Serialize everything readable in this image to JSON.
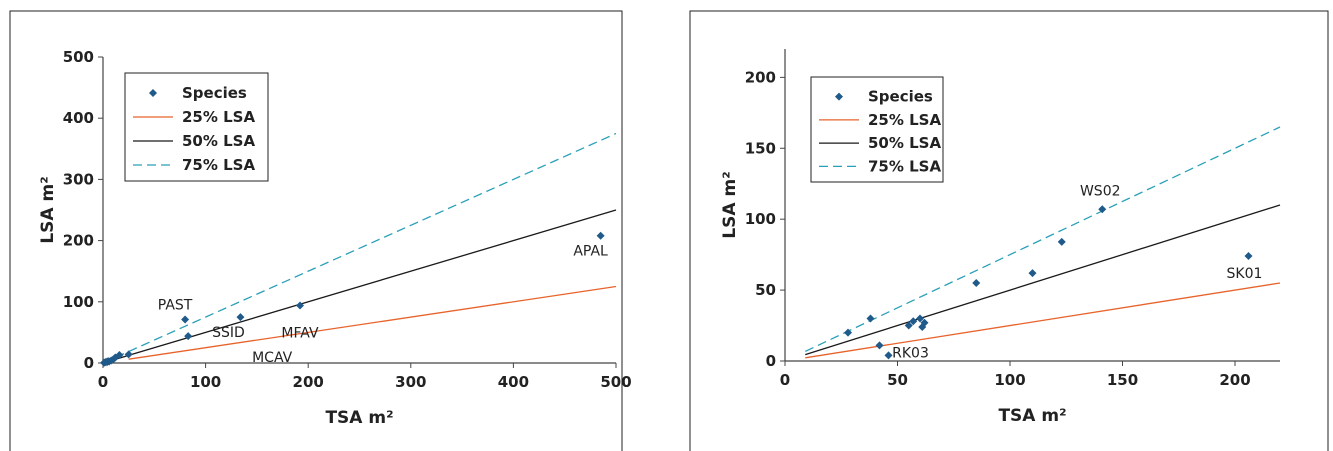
{
  "colors": {
    "marker": "#1f5a8a",
    "line_25": "#e8632b",
    "line_50": "#1a1a1a",
    "line_75": "#2aa0b8"
  },
  "chart_data": [
    {
      "type": "scatter",
      "xlabel": "TSA m²",
      "ylabel": "LSA m²",
      "xlim": [
        0,
        500
      ],
      "ylim": [
        0,
        500
      ],
      "xticks": [
        0,
        100,
        200,
        300,
        400,
        500
      ],
      "yticks": [
        0,
        100,
        200,
        300,
        400,
        500
      ],
      "legend": {
        "placement": "top-left",
        "entries": [
          "Species",
          "25% LSA",
          "50% LSA",
          "75% LSA"
        ]
      },
      "series": [
        {
          "name": "Species",
          "kind": "points",
          "points": [
            {
              "x": 1,
              "y": 0.5
            },
            {
              "x": 2,
              "y": 1
            },
            {
              "x": 3,
              "y": 2
            },
            {
              "x": 4,
              "y": 1.5
            },
            {
              "x": 5,
              "y": 3
            },
            {
              "x": 6,
              "y": 2.5
            },
            {
              "x": 8,
              "y": 4
            },
            {
              "x": 10,
              "y": 6
            },
            {
              "x": 12,
              "y": 9
            },
            {
              "x": 16,
              "y": 13
            },
            {
              "x": 25,
              "y": 14
            },
            {
              "x": 80,
              "y": 71,
              "label": "PAST"
            },
            {
              "x": 83,
              "y": 44,
              "label": "MCAV"
            },
            {
              "x": 134,
              "y": 75,
              "label": "SSID"
            },
            {
              "x": 192,
              "y": 94,
              "label": "MFAV"
            },
            {
              "x": 485,
              "y": 208,
              "label": "APAL"
            }
          ]
        },
        {
          "name": "25% LSA",
          "kind": "solid",
          "x": [
            25,
            500
          ],
          "y": [
            6.25,
            125
          ]
        },
        {
          "name": "50% LSA",
          "kind": "solid",
          "x": [
            0,
            500
          ],
          "y": [
            0,
            250
          ]
        },
        {
          "name": "75% LSA",
          "kind": "dashed",
          "x": [
            0,
            500
          ],
          "y": [
            0,
            375
          ]
        }
      ]
    },
    {
      "type": "scatter",
      "xlabel": "TSA m²",
      "ylabel": "LSA m²",
      "xlim": [
        0,
        220
      ],
      "ylim": [
        0,
        220
      ],
      "xticks": [
        0,
        50,
        100,
        150,
        200
      ],
      "yticks": [
        0,
        50,
        100,
        150,
        200
      ],
      "legend": {
        "placement": "top-left",
        "entries": [
          "Species",
          "25% LSA",
          "50% LSA",
          "75% LSA"
        ]
      },
      "series": [
        {
          "name": "Species",
          "kind": "points",
          "points": [
            {
              "x": 28,
              "y": 20
            },
            {
              "x": 38,
              "y": 30
            },
            {
              "x": 42,
              "y": 11
            },
            {
              "x": 46,
              "y": 4,
              "label": "RK03"
            },
            {
              "x": 55,
              "y": 25
            },
            {
              "x": 57,
              "y": 28
            },
            {
              "x": 60,
              "y": 30
            },
            {
              "x": 61,
              "y": 24
            },
            {
              "x": 62,
              "y": 27
            },
            {
              "x": 85,
              "y": 55
            },
            {
              "x": 110,
              "y": 62
            },
            {
              "x": 123,
              "y": 84
            },
            {
              "x": 141,
              "y": 107,
              "label": "WS02"
            },
            {
              "x": 206,
              "y": 74,
              "label": "SK01"
            }
          ]
        },
        {
          "name": "25% LSA",
          "kind": "solid",
          "x": [
            9,
            220
          ],
          "y": [
            2.25,
            55
          ]
        },
        {
          "name": "50% LSA",
          "kind": "solid",
          "x": [
            9,
            220
          ],
          "y": [
            4.5,
            110
          ]
        },
        {
          "name": "75% LSA",
          "kind": "dashed",
          "x": [
            9,
            220
          ],
          "y": [
            6.75,
            165
          ]
        }
      ]
    }
  ]
}
